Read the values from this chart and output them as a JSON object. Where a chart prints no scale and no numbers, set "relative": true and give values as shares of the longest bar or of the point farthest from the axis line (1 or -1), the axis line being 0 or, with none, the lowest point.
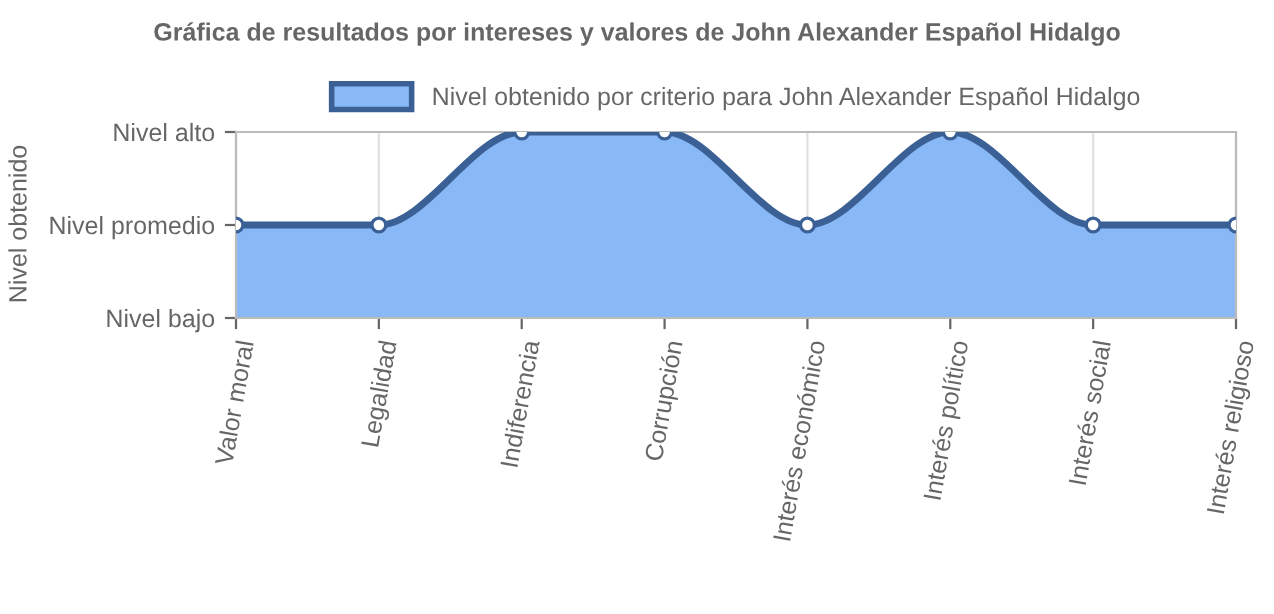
{
  "chart_data": {
    "type": "area",
    "title": "Gráfica de resultados por intereses y valores de John Alexander Español Hidalgo",
    "categories": [
      "Valor moral",
      "Legalidad",
      "Indiferencia",
      "Corrupción",
      "Interés económico",
      "Interés político",
      "Interés social",
      "Interés religioso"
    ],
    "series": [
      {
        "name": "Nivel obtenido por criterio para John Alexander Español Hidalgo",
        "color": "#88b9f6",
        "values": [
          0.5,
          0.5,
          1,
          1,
          0.5,
          1,
          0.5,
          0.5
        ]
      }
    ],
    "relative": true,
    "annotations": [
      "Nivel obtenido",
      "Nivel bajo",
      "Nivel promedio",
      "Nivel alto"
    ],
    "grid": true,
    "legend": "top",
    "marker": "circle",
    "line_style": "solid"
  }
}
